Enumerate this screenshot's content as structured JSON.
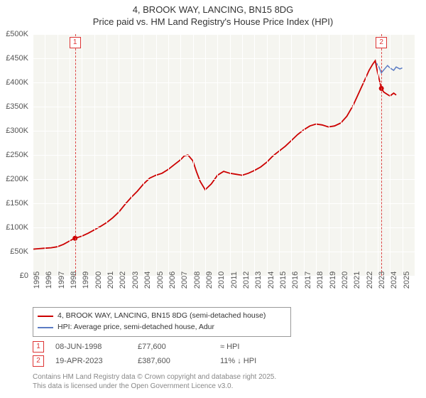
{
  "title_line1": "4, BROOK WAY, LANCING, BN15 8DG",
  "title_line2": "Price paid vs. HM Land Registry's House Price Index (HPI)",
  "chart": {
    "type": "line",
    "background_color": "#f5f5f0",
    "grid_color": "#ffffff",
    "x_min": 1995,
    "x_max": 2026,
    "x_tick_step": 1,
    "x_ticks": [
      "1995",
      "1996",
      "1997",
      "1998",
      "1999",
      "2000",
      "2001",
      "2002",
      "2003",
      "2004",
      "2005",
      "2006",
      "2007",
      "2008",
      "2009",
      "2010",
      "2011",
      "2012",
      "2013",
      "2014",
      "2015",
      "2016",
      "2017",
      "2018",
      "2019",
      "2020",
      "2021",
      "2022",
      "2023",
      "2024",
      "2025"
    ],
    "y_min": 0,
    "y_max": 500000,
    "y_tick_step": 50000,
    "y_ticks": [
      "£0",
      "£50K",
      "£100K",
      "£150K",
      "£200K",
      "£250K",
      "£300K",
      "£350K",
      "£400K",
      "£450K",
      "£500K"
    ],
    "series": [
      {
        "name": "4, BROOK WAY, LANCING, BN15 8DG (semi-detached house)",
        "color": "#cc0000",
        "line_width": 1.8,
        "points": [
          [
            1995.0,
            55000
          ],
          [
            1995.5,
            56000
          ],
          [
            1996.0,
            57000
          ],
          [
            1996.5,
            58000
          ],
          [
            1997.0,
            60000
          ],
          [
            1997.5,
            65000
          ],
          [
            1998.0,
            72000
          ],
          [
            1998.4,
            77600
          ],
          [
            1998.5,
            78000
          ],
          [
            1999.0,
            82000
          ],
          [
            1999.5,
            88000
          ],
          [
            2000.0,
            95000
          ],
          [
            2000.5,
            102000
          ],
          [
            2001.0,
            110000
          ],
          [
            2001.5,
            120000
          ],
          [
            2002.0,
            132000
          ],
          [
            2002.5,
            148000
          ],
          [
            2003.0,
            162000
          ],
          [
            2003.5,
            175000
          ],
          [
            2004.0,
            190000
          ],
          [
            2004.5,
            202000
          ],
          [
            2005.0,
            208000
          ],
          [
            2005.5,
            212000
          ],
          [
            2006.0,
            220000
          ],
          [
            2006.5,
            230000
          ],
          [
            2007.0,
            240000
          ],
          [
            2007.3,
            248000
          ],
          [
            2007.6,
            250000
          ],
          [
            2008.0,
            238000
          ],
          [
            2008.3,
            215000
          ],
          [
            2008.6,
            195000
          ],
          [
            2009.0,
            178000
          ],
          [
            2009.5,
            190000
          ],
          [
            2010.0,
            208000
          ],
          [
            2010.5,
            216000
          ],
          [
            2011.0,
            212000
          ],
          [
            2011.5,
            210000
          ],
          [
            2012.0,
            208000
          ],
          [
            2012.5,
            212000
          ],
          [
            2013.0,
            218000
          ],
          [
            2013.5,
            225000
          ],
          [
            2014.0,
            235000
          ],
          [
            2014.5,
            248000
          ],
          [
            2015.0,
            258000
          ],
          [
            2015.5,
            268000
          ],
          [
            2016.0,
            280000
          ],
          [
            2016.5,
            292000
          ],
          [
            2017.0,
            302000
          ],
          [
            2017.5,
            310000
          ],
          [
            2018.0,
            314000
          ],
          [
            2018.5,
            312000
          ],
          [
            2019.0,
            308000
          ],
          [
            2019.5,
            310000
          ],
          [
            2020.0,
            316000
          ],
          [
            2020.5,
            330000
          ],
          [
            2021.0,
            352000
          ],
          [
            2021.5,
            380000
          ],
          [
            2022.0,
            408000
          ],
          [
            2022.3,
            425000
          ],
          [
            2022.6,
            438000
          ],
          [
            2022.8,
            445000
          ],
          [
            2023.0,
            420000
          ],
          [
            2023.3,
            387600
          ],
          [
            2023.5,
            380000
          ],
          [
            2023.8,
            375000
          ],
          [
            2024.0,
            372000
          ],
          [
            2024.3,
            378000
          ],
          [
            2024.5,
            374000
          ]
        ]
      },
      {
        "name": "HPI: Average price, semi-detached house, Adur",
        "color": "#5b7cc4",
        "line_width": 1.5,
        "points": [
          [
            2022.9,
            440000
          ],
          [
            2023.1,
            432000
          ],
          [
            2023.3,
            420000
          ],
          [
            2023.5,
            426000
          ],
          [
            2023.8,
            435000
          ],
          [
            2024.0,
            430000
          ],
          [
            2024.3,
            425000
          ],
          [
            2024.5,
            432000
          ],
          [
            2024.8,
            428000
          ],
          [
            2025.0,
            430000
          ]
        ]
      }
    ],
    "markers": [
      {
        "id": "1",
        "x": 1998.44,
        "point_y": 77600,
        "line_color": "#d44"
      },
      {
        "id": "2",
        "x": 2023.3,
        "point_y": 387600,
        "line_color": "#d44"
      }
    ],
    "sale_point_color": "#cc0000",
    "sale_point_radius": 3.5
  },
  "legend": {
    "items": [
      {
        "color": "#cc0000",
        "label": "4, BROOK WAY, LANCING, BN15 8DG (semi-detached house)"
      },
      {
        "color": "#5b7cc4",
        "label": "HPI: Average price, semi-detached house, Adur"
      }
    ]
  },
  "sales": [
    {
      "marker": "1",
      "date": "08-JUN-1998",
      "price": "£77,600",
      "delta": "≈ HPI"
    },
    {
      "marker": "2",
      "date": "19-APR-2023",
      "price": "£387,600",
      "delta": "11% ↓ HPI"
    }
  ],
  "footnote_line1": "Contains HM Land Registry data © Crown copyright and database right 2025.",
  "footnote_line2": "This data is licensed under the Open Government Licence v3.0."
}
